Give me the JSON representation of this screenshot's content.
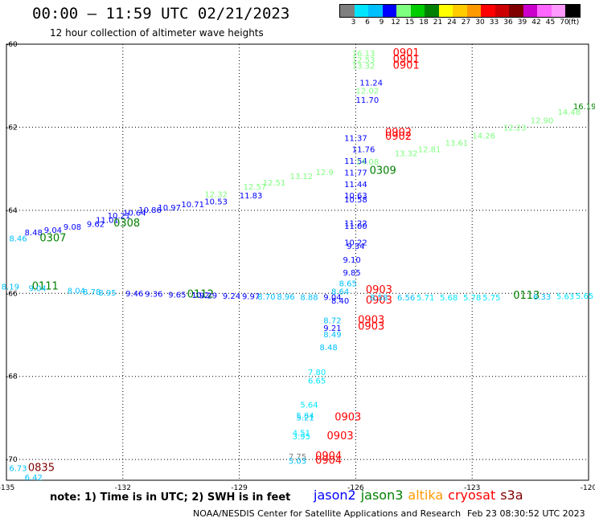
{
  "header": {
    "title": "00:00 — 11:59 UTC 02/21/2023",
    "subtitle": "12 hour collection of altimeter wave heights"
  },
  "legend": {
    "labels": [
      "3",
      "6",
      "9",
      "12",
      "15",
      "18",
      "21",
      "24",
      "27",
      "30",
      "33",
      "36",
      "39",
      "42",
      "45",
      "70",
      "(ft)"
    ],
    "colors": [
      "#7f7f7f",
      "#00e5ff",
      "#00bfff",
      "#0000ff",
      "#7fff7f",
      "#00cc00",
      "#008000",
      "#ffff00",
      "#ffcc00",
      "#ff9900",
      "#ff0000",
      "#cc0000",
      "#800000",
      "#cc00cc",
      "#ff66ff",
      "#ff99ff",
      "#000000"
    ]
  },
  "map": {
    "x_tick_labels": [
      "-135",
      "-132",
      "-129",
      "-126",
      "-123",
      "-120"
    ],
    "y_tick_labels": [
      "-60",
      "-62",
      "-64",
      "-66",
      "-68",
      "-70"
    ]
  },
  "observations": [
    {
      "text": "16.13",
      "x": -125.8,
      "y": -60.29,
      "c": "#7fff7f"
    },
    {
      "text": "12.53",
      "x": -125.8,
      "y": -60.44,
      "c": "#7fff7f"
    },
    {
      "text": "13.32",
      "x": -125.8,
      "y": -60.59,
      "c": "#7fff7f"
    },
    {
      "text": "0901",
      "x": -124.7,
      "y": -60.29,
      "c": "#ff0000"
    },
    {
      "text": "0901",
      "x": -124.7,
      "y": -60.44,
      "c": "#ff0000"
    },
    {
      "text": "0901",
      "x": -124.7,
      "y": -60.59,
      "c": "#ff0000"
    },
    {
      "text": "11.24",
      "x": -125.6,
      "y": -61.0,
      "c": "#0000ff"
    },
    {
      "text": "12.02",
      "x": -125.7,
      "y": -61.19,
      "c": "#7fff7f"
    },
    {
      "text": "11.70",
      "x": -125.7,
      "y": -61.41,
      "c": "#0000ff"
    },
    {
      "text": "16.19",
      "x": -120.1,
      "y": -61.57,
      "c": "#008000"
    },
    {
      "text": "0902",
      "x": -124.9,
      "y": -62.2,
      "c": "#ff0000"
    },
    {
      "text": "0902",
      "x": -124.9,
      "y": -62.3,
      "c": "#ff0000"
    },
    {
      "text": "11.37",
      "x": -126.0,
      "y": -62.33,
      "c": "#0000ff"
    },
    {
      "text": "11.76",
      "x": -125.8,
      "y": -62.6,
      "c": "#0000ff"
    },
    {
      "text": "11.54",
      "x": -126.0,
      "y": -62.88,
      "c": "#0000ff"
    },
    {
      "text": "11.77",
      "x": -126.0,
      "y": -63.16,
      "c": "#0000ff"
    },
    {
      "text": "0309",
      "x": -125.3,
      "y": -63.12,
      "c": "#008000"
    },
    {
      "text": "11.44",
      "x": -126.0,
      "y": -63.44,
      "c": "#0000ff"
    },
    {
      "text": "10.63",
      "x": -126.0,
      "y": -63.71,
      "c": "#0000ff"
    },
    {
      "text": "10.58",
      "x": -126.0,
      "y": -63.81,
      "c": "#0000ff"
    },
    {
      "text": "11.83",
      "x": -128.7,
      "y": -63.71,
      "c": "#0000ff"
    },
    {
      "text": "10.53",
      "x": -129.6,
      "y": -63.86,
      "c": "#0000ff"
    },
    {
      "text": "10.71",
      "x": -130.2,
      "y": -63.93,
      "c": "#0000ff"
    },
    {
      "text": "10.97",
      "x": -130.8,
      "y": -64.0,
      "c": "#0000ff"
    },
    {
      "text": "10.86",
      "x": -131.3,
      "y": -64.06,
      "c": "#0000ff"
    },
    {
      "text": "10.64",
      "x": -131.7,
      "y": -64.13,
      "c": "#0000ff"
    },
    {
      "text": "10.21",
      "x": -132.1,
      "y": -64.2,
      "c": "#0000ff"
    },
    {
      "text": "11.01",
      "x": -132.4,
      "y": -64.3,
      "c": "#0000ff"
    },
    {
      "text": "0308",
      "x": -131.9,
      "y": -64.39,
      "c": "#008000"
    },
    {
      "text": "9.62",
      "x": -132.7,
      "y": -64.4,
      "c": "#0000ff"
    },
    {
      "text": "9.08",
      "x": -133.3,
      "y": -64.47,
      "c": "#0000ff"
    },
    {
      "text": "9.04",
      "x": -133.8,
      "y": -64.54,
      "c": "#0000ff"
    },
    {
      "text": "8.48",
      "x": -134.3,
      "y": -64.6,
      "c": "#0000ff"
    },
    {
      "text": "0307",
      "x": -133.8,
      "y": -64.75,
      "c": "#008000"
    },
    {
      "text": "8.46",
      "x": -134.7,
      "y": -64.75,
      "c": "#00bfff"
    },
    {
      "text": "11.22",
      "x": -126.0,
      "y": -64.38,
      "c": "#0000ff"
    },
    {
      "text": "11.00",
      "x": -126.0,
      "y": -64.45,
      "c": "#0000ff"
    },
    {
      "text": "10.22",
      "x": -126.0,
      "y": -64.84,
      "c": "#0000ff"
    },
    {
      "text": "9.34",
      "x": -126.0,
      "y": -64.93,
      "c": "#0000ff"
    },
    {
      "text": "9.10",
      "x": -126.1,
      "y": -65.26,
      "c": "#0000ff"
    },
    {
      "text": "9.85",
      "x": -126.1,
      "y": -65.57,
      "c": "#0000ff"
    },
    {
      "text": "8.65",
      "x": -126.2,
      "y": -65.83,
      "c": "#00bfff"
    },
    {
      "text": "8.64",
      "x": -126.4,
      "y": -66.02,
      "c": "#00bfff"
    },
    {
      "text": "0903",
      "x": -125.4,
      "y": -65.99,
      "c": "#ff0000"
    },
    {
      "text": "0903",
      "x": -125.4,
      "y": -66.25,
      "c": "#ff0000"
    },
    {
      "text": "8.40",
      "x": -126.4,
      "y": -66.25,
      "c": "#0000ff"
    },
    {
      "text": "8.72",
      "x": -126.6,
      "y": -66.72,
      "c": "#00bfff"
    },
    {
      "text": "0903",
      "x": -125.6,
      "y": -66.72,
      "c": "#ff0000"
    },
    {
      "text": "0903",
      "x": -125.6,
      "y": -66.87,
      "c": "#ff0000"
    },
    {
      "text": "9.21",
      "x": -126.6,
      "y": -66.9,
      "c": "#0000ff"
    },
    {
      "text": "8.49",
      "x": -126.6,
      "y": -67.06,
      "c": "#00bfff"
    },
    {
      "text": "8.48",
      "x": -126.7,
      "y": -67.37,
      "c": "#00bfff"
    },
    {
      "text": "7.80",
      "x": -127.0,
      "y": -67.97,
      "c": "#00e5ff"
    },
    {
      "text": "6.65",
      "x": -127.0,
      "y": -68.17,
      "c": "#00e5ff"
    },
    {
      "text": "5.64",
      "x": -127.2,
      "y": -68.75,
      "c": "#00e5ff"
    },
    {
      "text": "5.84",
      "x": -127.3,
      "y": -69.01,
      "c": "#00e5ff"
    },
    {
      "text": "5.21",
      "x": -127.3,
      "y": -69.06,
      "c": "#00bfff"
    },
    {
      "text": "0903",
      "x": -126.2,
      "y": -69.06,
      "c": "#ff0000"
    },
    {
      "text": "4.51",
      "x": -127.4,
      "y": -69.43,
      "c": "#00e5ff"
    },
    {
      "text": "3.95",
      "x": -127.4,
      "y": -69.51,
      "c": "#00e5ff"
    },
    {
      "text": "0903",
      "x": -126.4,
      "y": -69.51,
      "c": "#ff0000"
    },
    {
      "text": "7.75",
      "x": -127.5,
      "y": -70.0,
      "c": "#7f7f7f"
    },
    {
      "text": "5.03",
      "x": -127.5,
      "y": -70.1,
      "c": "#00bfff"
    },
    {
      "text": "0904",
      "x": -126.7,
      "y": -70.0,
      "c": "#ff0000"
    },
    {
      "text": "0904",
      "x": -126.7,
      "y": -70.1,
      "c": "#ff0000"
    },
    {
      "text": "6.73",
      "x": -134.7,
      "y": -70.28,
      "c": "#00bfff"
    },
    {
      "text": "0835",
      "x": -134.1,
      "y": -70.28,
      "c": "#800000"
    },
    {
      "text": "6.42",
      "x": -134.3,
      "y": -70.5,
      "c": "#00bfff"
    },
    {
      "text": "8.19",
      "x": -134.9,
      "y": -65.91,
      "c": "#00bfff"
    },
    {
      "text": "0111",
      "x": -134.0,
      "y": -65.91,
      "c": "#008000"
    },
    {
      "text": "9.04",
      "x": -134.2,
      "y": -65.95,
      "c": "#00bfff"
    },
    {
      "text": "8.04",
      "x": -133.2,
      "y": -66.0,
      "c": "#00bfff"
    },
    {
      "text": "8.78",
      "x": -132.8,
      "y": -66.03,
      "c": "#00bfff"
    },
    {
      "text": "8.95",
      "x": -132.4,
      "y": -66.05,
      "c": "#00bfff"
    },
    {
      "text": "9.46",
      "x": -131.7,
      "y": -66.07,
      "c": "#0000ff"
    },
    {
      "text": "9.36",
      "x": -131.2,
      "y": -66.08,
      "c": "#0000ff"
    },
    {
      "text": "9.65",
      "x": -130.6,
      "y": -66.1,
      "c": "#0000ff"
    },
    {
      "text": "0112",
      "x": -130.0,
      "y": -66.1,
      "c": "#008000"
    },
    {
      "text": "10.2",
      "x": -130.0,
      "y": -66.11,
      "c": "#0000ff"
    },
    {
      "text": "9.29",
      "x": -129.8,
      "y": -66.12,
      "c": "#0000ff"
    },
    {
      "text": "9.24",
      "x": -129.2,
      "y": -66.13,
      "c": "#0000ff"
    },
    {
      "text": "9.97",
      "x": -128.7,
      "y": -66.14,
      "c": "#0000ff"
    },
    {
      "text": "8.70",
      "x": -128.3,
      "y": -66.15,
      "c": "#00bfff"
    },
    {
      "text": "8.96",
      "x": -127.8,
      "y": -66.15,
      "c": "#00bfff"
    },
    {
      "text": "8.88",
      "x": -127.2,
      "y": -66.16,
      "c": "#00bfff"
    },
    {
      "text": "9.04",
      "x": -126.6,
      "y": -66.16,
      "c": "#0000ff"
    },
    {
      "text": "8.58",
      "x": -125.4,
      "y": -66.17,
      "c": "#00bfff"
    },
    {
      "text": "6.56",
      "x": -124.7,
      "y": -66.17,
      "c": "#00bfff"
    },
    {
      "text": "5.71",
      "x": -124.2,
      "y": -66.17,
      "c": "#00e5ff"
    },
    {
      "text": "5.68",
      "x": -123.6,
      "y": -66.17,
      "c": "#00e5ff"
    },
    {
      "text": "5.78",
      "x": -123.0,
      "y": -66.17,
      "c": "#00e5ff"
    },
    {
      "text": "5.75",
      "x": -122.5,
      "y": -66.17,
      "c": "#00e5ff"
    },
    {
      "text": "0113",
      "x": -121.6,
      "y": -66.13,
      "c": "#008000"
    },
    {
      "text": "6.33",
      "x": -121.2,
      "y": -66.15,
      "c": "#00bfff"
    },
    {
      "text": "5.63",
      "x": -120.6,
      "y": -66.14,
      "c": "#00e5ff"
    },
    {
      "text": "5.65",
      "x": -120.1,
      "y": -66.13,
      "c": "#00e5ff"
    },
    {
      "text": "12.32",
      "x": -129.6,
      "y": -63.68,
      "c": "#7fff7f"
    },
    {
      "text": "12.57",
      "x": -128.6,
      "y": -63.5,
      "c": "#7fff7f"
    },
    {
      "text": "12.51",
      "x": -128.1,
      "y": -63.4,
      "c": "#7fff7f"
    },
    {
      "text": "13.12",
      "x": -127.4,
      "y": -63.25,
      "c": "#7fff7f"
    },
    {
      "text": "12.9",
      "x": -126.8,
      "y": -63.15,
      "c": "#7fff7f"
    },
    {
      "text": "14.08",
      "x": -125.7,
      "y": -62.9,
      "c": "#7fff7f"
    },
    {
      "text": "13.32",
      "x": -124.7,
      "y": -62.7,
      "c": "#7fff7f"
    },
    {
      "text": "12.81",
      "x": -124.1,
      "y": -62.6,
      "c": "#7fff7f"
    },
    {
      "text": "13.61",
      "x": -123.4,
      "y": -62.45,
      "c": "#7fff7f"
    },
    {
      "text": "14.26",
      "x": -122.7,
      "y": -62.27,
      "c": "#7fff7f"
    },
    {
      "text": "12.23",
      "x": -121.9,
      "y": -62.08,
      "c": "#7fff7f"
    },
    {
      "text": "12.90",
      "x": -121.2,
      "y": -61.9,
      "c": "#7fff7f"
    },
    {
      "text": "14.48",
      "x": -120.5,
      "y": -61.7,
      "c": "#7fff7f"
    }
  ],
  "footer": {
    "note": "note:  1) Time is in UTC;  2) SWH is in feet",
    "satellites": [
      {
        "name": "jason2",
        "color": "#0000ff"
      },
      {
        "name": "jason3",
        "color": "#008000"
      },
      {
        "name": "altika",
        "color": "#ff9900"
      },
      {
        "name": "cryosat",
        "color": "#ff0000"
      },
      {
        "name": "s3a",
        "color": "#800000"
      }
    ],
    "credit": "NOAA/NESDIS Center for Satellite Applications and Research",
    "timestamp": "Feb 23 08:30:52 UTC 2023"
  }
}
